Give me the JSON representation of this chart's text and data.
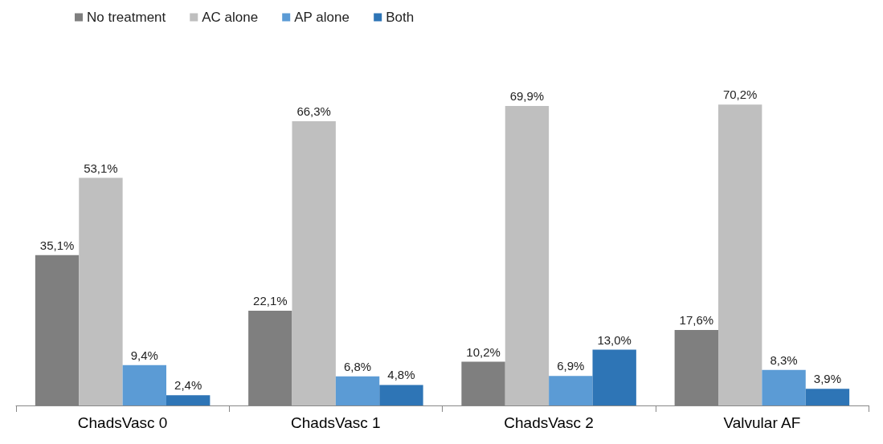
{
  "chart_data": {
    "type": "bar",
    "categories": [
      "ChadsVasc 0",
      "ChadsVasc 1",
      "ChadsVasc 2",
      "Valvular AF"
    ],
    "series": [
      {
        "name": "No treatment",
        "color": "#7f7f7f",
        "values": [
          35.1,
          22.1,
          10.2,
          17.6
        ],
        "value_labels": [
          "35,1%",
          "22,1%",
          "10,2%",
          "17,6%"
        ]
      },
      {
        "name": "AC alone",
        "color": "#bfbfbf",
        "values": [
          53.1,
          66.3,
          69.9,
          70.2
        ],
        "value_labels": [
          "53,1%",
          "66,3%",
          "69,9%",
          "70,2%"
        ]
      },
      {
        "name": "AP alone",
        "color": "#5b9bd5",
        "values": [
          9.4,
          6.8,
          6.9,
          8.3
        ],
        "value_labels": [
          "9,4%",
          "6,8%",
          "6,9%",
          "8,3%"
        ]
      },
      {
        "name": "Both",
        "color": "#2e75b6",
        "values": [
          2.4,
          4.8,
          13.0,
          3.9
        ],
        "value_labels": [
          "2,4%",
          "4,8%",
          "13,0%",
          "3,9%"
        ]
      }
    ],
    "legend": "top left",
    "tick_labels": "x"
  }
}
